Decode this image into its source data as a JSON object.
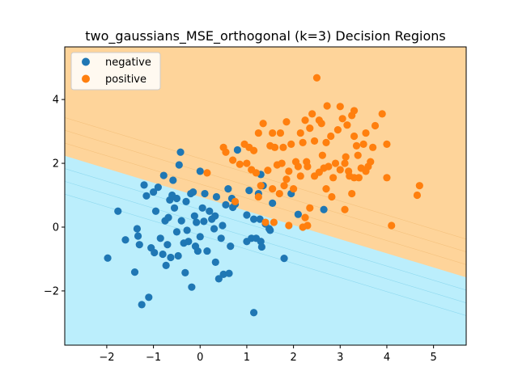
{
  "chart_data": {
    "type": "scatter",
    "title": "two_gaussians_MSE_orthogonal (k=3) Decision Regions",
    "xlabel": "",
    "ylabel": "",
    "xlim": [
      -2.9,
      5.7
    ],
    "ylim": [
      -3.7,
      5.65
    ],
    "xticks": [
      "−2",
      "−1",
      "0",
      "1",
      "2",
      "3",
      "4",
      "5"
    ],
    "xtick_values": [
      -2,
      -1,
      0,
      1,
      2,
      3,
      4,
      5
    ],
    "yticks": [
      "−2",
      "0",
      "2",
      "4"
    ],
    "ytick_values": [
      -2,
      0,
      2,
      4
    ],
    "grid": false,
    "legend_position": "upper-left",
    "region_colors": {
      "negative": "#bbeefc",
      "positive": "#fed49a"
    },
    "boundary": {
      "slope": -0.443,
      "intercept": 0.95
    },
    "series": [
      {
        "name": "negative",
        "color": "#1f77b4",
        "points": [
          [
            -1.98,
            -0.97
          ],
          [
            -1.76,
            0.5
          ],
          [
            -1.6,
            -0.4
          ],
          [
            -1.4,
            -1.41
          ],
          [
            -1.35,
            -0.05
          ],
          [
            -1.33,
            -0.28
          ],
          [
            -1.3,
            -0.55
          ],
          [
            -1.25,
            -2.43
          ],
          [
            -1.2,
            1.32
          ],
          [
            -1.15,
            0.98
          ],
          [
            -1.1,
            -2.2
          ],
          [
            -1.05,
            -0.65
          ],
          [
            -1.0,
            1.1
          ],
          [
            -0.98,
            -0.8
          ],
          [
            -0.95,
            0.5
          ],
          [
            -0.9,
            1.25
          ],
          [
            -0.85,
            -0.35
          ],
          [
            -0.8,
            -0.85
          ],
          [
            -0.78,
            1.62
          ],
          [
            -0.75,
            0.2
          ],
          [
            -0.73,
            -1.2
          ],
          [
            -0.7,
            -0.55
          ],
          [
            -0.68,
            0.3
          ],
          [
            -0.65,
            0.85
          ],
          [
            -0.63,
            -0.95
          ],
          [
            -0.6,
            1.0
          ],
          [
            -0.58,
            1.47
          ],
          [
            -0.55,
            0.6
          ],
          [
            -0.5,
            -0.15
          ],
          [
            -0.5,
            0.9
          ],
          [
            -0.47,
            -0.9
          ],
          [
            -0.45,
            1.95
          ],
          [
            -0.42,
            2.35
          ],
          [
            -0.4,
            0.2
          ],
          [
            -0.35,
            -0.5
          ],
          [
            -0.32,
            -1.43
          ],
          [
            -0.3,
            0.8
          ],
          [
            -0.28,
            -0.1
          ],
          [
            -0.25,
            -0.45
          ],
          [
            -0.2,
            1.05
          ],
          [
            -0.18,
            -1.88
          ],
          [
            -0.15,
            1.1
          ],
          [
            -0.12,
            0.35
          ],
          [
            -0.1,
            -0.6
          ],
          [
            -0.08,
            0.15
          ],
          [
            -0.05,
            -0.75
          ],
          [
            0.0,
            -0.3
          ],
          [
            0.0,
            1.75
          ],
          [
            0.05,
            0.6
          ],
          [
            0.08,
            0.18
          ],
          [
            0.1,
            1.05
          ],
          [
            0.15,
            -0.75
          ],
          [
            0.2,
            0.5
          ],
          [
            0.25,
            0.25
          ],
          [
            0.3,
            -0.05
          ],
          [
            0.32,
            0.35
          ],
          [
            0.33,
            -1.1
          ],
          [
            0.35,
            0.95
          ],
          [
            0.4,
            -1.62
          ],
          [
            0.45,
            -0.35
          ],
          [
            0.48,
            0.05
          ],
          [
            0.5,
            -1.48
          ],
          [
            0.55,
            0.7
          ],
          [
            0.6,
            1.2
          ],
          [
            0.62,
            -1.45
          ],
          [
            0.65,
            -0.6
          ],
          [
            0.68,
            0.9
          ],
          [
            0.7,
            0.62
          ],
          [
            0.75,
            0.72
          ],
          [
            0.8,
            2.42
          ],
          [
            1.0,
            0.38
          ],
          [
            1.0,
            -0.45
          ],
          [
            1.05,
            1.15
          ],
          [
            1.1,
            -0.35
          ],
          [
            1.15,
            0.25
          ],
          [
            1.15,
            -2.68
          ],
          [
            1.2,
            -0.35
          ],
          [
            1.25,
            1.05
          ],
          [
            1.28,
            0.25
          ],
          [
            1.3,
            -0.45
          ],
          [
            1.3,
            1.65
          ],
          [
            1.32,
            -0.62
          ],
          [
            1.35,
            1.3
          ],
          [
            1.4,
            0.1
          ],
          [
            1.48,
            -0.05
          ],
          [
            1.5,
            -0.1
          ],
          [
            1.55,
            0.75
          ],
          [
            1.8,
            -0.98
          ],
          [
            1.95,
            1.05
          ],
          [
            2.1,
            0.4
          ],
          [
            2.65,
            0.55
          ]
        ]
      },
      {
        "name": "positive",
        "color": "#ff7f0e",
        "points": [
          [
            0.15,
            1.7
          ],
          [
            0.5,
            2.5
          ],
          [
            0.55,
            2.35
          ],
          [
            0.7,
            2.1
          ],
          [
            0.75,
            0.8
          ],
          [
            0.85,
            1.97
          ],
          [
            0.95,
            2.6
          ],
          [
            1.0,
            2.0
          ],
          [
            1.05,
            2.5
          ],
          [
            1.1,
            1.8
          ],
          [
            1.15,
            2.4
          ],
          [
            1.2,
            1.7
          ],
          [
            1.25,
            0.95
          ],
          [
            1.25,
            2.95
          ],
          [
            1.3,
            1.3
          ],
          [
            1.35,
            3.25
          ],
          [
            1.4,
            0.15
          ],
          [
            1.45,
            1.78
          ],
          [
            1.5,
            2.55
          ],
          [
            1.55,
            1.2
          ],
          [
            1.55,
            2.95
          ],
          [
            1.58,
            0.15
          ],
          [
            1.6,
            2.5
          ],
          [
            1.65,
            1.95
          ],
          [
            1.7,
            1.05
          ],
          [
            1.72,
            2.95
          ],
          [
            1.75,
            2.0
          ],
          [
            1.78,
            2.5
          ],
          [
            1.8,
            1.3
          ],
          [
            1.85,
            1.5
          ],
          [
            1.85,
            3.3
          ],
          [
            1.9,
            0.05
          ],
          [
            1.9,
            1.75
          ],
          [
            1.95,
            2.6
          ],
          [
            2.0,
            1.2
          ],
          [
            2.05,
            2.05
          ],
          [
            2.1,
            1.9
          ],
          [
            2.15,
            2.95
          ],
          [
            2.15,
            1.6
          ],
          [
            2.2,
            2.65
          ],
          [
            2.2,
            0.0
          ],
          [
            2.25,
            0.3
          ],
          [
            2.25,
            3.35
          ],
          [
            2.28,
            2.05
          ],
          [
            2.3,
            0.05
          ],
          [
            2.3,
            1.9
          ],
          [
            2.35,
            3.1
          ],
          [
            2.35,
            0.6
          ],
          [
            2.4,
            3.55
          ],
          [
            2.45,
            2.7
          ],
          [
            2.45,
            1.6
          ],
          [
            2.5,
            4.68
          ],
          [
            2.55,
            3.35
          ],
          [
            2.6,
            3.25
          ],
          [
            2.62,
            2.25
          ],
          [
            2.65,
            1.85
          ],
          [
            2.7,
            1.2
          ],
          [
            2.7,
            2.65
          ],
          [
            2.72,
            3.8
          ],
          [
            2.75,
            1.9
          ],
          [
            2.8,
            2.85
          ],
          [
            2.82,
            0.95
          ],
          [
            2.85,
            1.55
          ],
          [
            2.9,
            2.0
          ],
          [
            2.95,
            3.05
          ],
          [
            3.0,
            1.8
          ],
          [
            3.0,
            3.78
          ],
          [
            3.05,
            3.4
          ],
          [
            3.1,
            0.55
          ],
          [
            3.1,
            2.0
          ],
          [
            3.12,
            2.2
          ],
          [
            3.15,
            3.2
          ],
          [
            3.18,
            1.75
          ],
          [
            3.2,
            1.6
          ],
          [
            3.25,
            3.5
          ],
          [
            3.25,
            1.05
          ],
          [
            3.3,
            2.85
          ],
          [
            3.3,
            3.65
          ],
          [
            3.3,
            1.55
          ],
          [
            3.35,
            2.55
          ],
          [
            3.38,
            2.25
          ],
          [
            3.4,
            1.55
          ],
          [
            3.45,
            1.85
          ],
          [
            3.5,
            2.6
          ],
          [
            3.55,
            1.75
          ],
          [
            3.55,
            2.95
          ],
          [
            3.6,
            1.9
          ],
          [
            3.65,
            2.05
          ],
          [
            3.7,
            2.5
          ],
          [
            3.75,
            3.18
          ],
          [
            3.9,
            3.55
          ],
          [
            4.0,
            1.55
          ],
          [
            4.0,
            2.6
          ],
          [
            4.1,
            0.05
          ],
          [
            4.65,
            1.0
          ],
          [
            4.7,
            1.3
          ],
          [
            2.55,
            1.72
          ]
        ]
      }
    ]
  }
}
